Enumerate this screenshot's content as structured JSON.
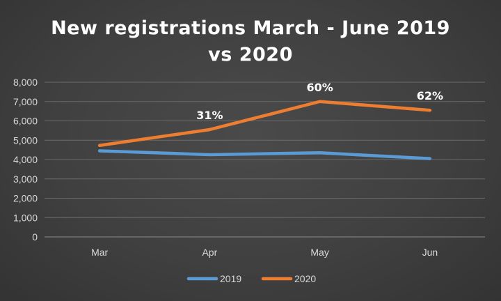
{
  "chart_data": {
    "type": "line",
    "title": "New registrations March - June 2019\nvs 2020",
    "categories": [
      "Mar",
      "Apr",
      "May",
      "Jun"
    ],
    "ylim": [
      0,
      8000
    ],
    "yticks": [
      "0",
      "1,000",
      "2,000",
      "3,000",
      "4,000",
      "5,000",
      "6,000",
      "7,000",
      "8,000"
    ],
    "grid": true,
    "legend_position": "bottom",
    "series": [
      {
        "name": "2019",
        "color": "#5b9bd5",
        "values": [
          4450,
          4250,
          4350,
          4050
        ]
      },
      {
        "name": "2020",
        "color": "#ed7d31",
        "values": [
          4730,
          5550,
          7000,
          6550
        ],
        "data_labels": [
          "",
          "31%",
          "60%",
          "62%"
        ]
      }
    ]
  }
}
